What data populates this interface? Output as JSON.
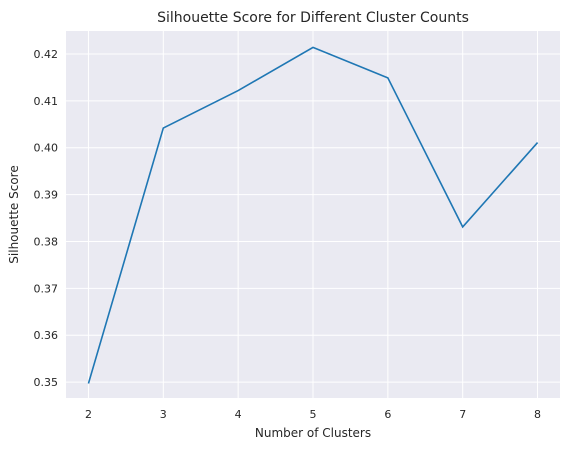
{
  "chart_data": {
    "type": "line",
    "title": "Silhouette Score for Different Cluster Counts",
    "xlabel": "Number of Clusters",
    "ylabel": "Silhouette Score",
    "x": [
      2,
      3,
      4,
      5,
      6,
      7,
      8
    ],
    "series": [
      {
        "values": [
          0.3497,
          0.4042,
          0.4122,
          0.4214,
          0.4149,
          0.3831,
          0.4011
        ],
        "color": "#1f77b4"
      }
    ],
    "xlim": [
      1.7,
      8.3
    ],
    "ylim": [
      0.3466,
      0.4249
    ],
    "xticks": [
      "2",
      "3",
      "4",
      "5",
      "6",
      "7",
      "8"
    ],
    "yticks": [
      "0.35",
      "0.36",
      "0.37",
      "0.38",
      "0.39",
      "0.40",
      "0.41",
      "0.42"
    ],
    "ytick_values": [
      0.35,
      0.36,
      0.37,
      0.38,
      0.39,
      0.4,
      0.41,
      0.42
    ],
    "grid": true,
    "background_color": "#eaeaf2",
    "grid_color": "#ffffff"
  }
}
